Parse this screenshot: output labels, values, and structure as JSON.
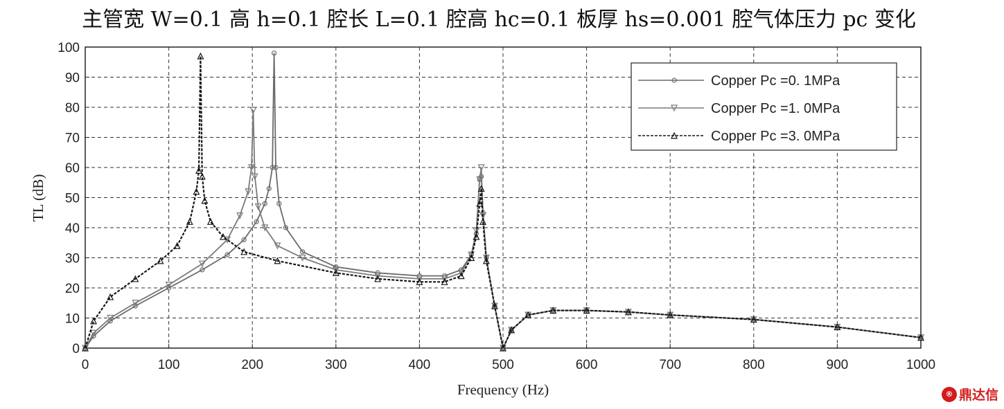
{
  "chart_data": {
    "type": "line",
    "title": "主管宽 W=0.1 高 h=0.1 腔长 L=0.1 腔高 hc=0.1 板厚 hs=0.001 腔气体压力 pc 变化",
    "xlabel": "Frequency (Hz)",
    "ylabel": "TL (dB)",
    "xlim": [
      0,
      1000
    ],
    "ylim": [
      0,
      100
    ],
    "xticks": [
      0,
      100,
      200,
      300,
      400,
      500,
      600,
      700,
      800,
      900,
      1000
    ],
    "yticks": [
      0,
      10,
      20,
      30,
      40,
      50,
      60,
      70,
      80,
      90,
      100
    ],
    "grid": true,
    "legend_position": "top-right",
    "series": [
      {
        "name": "Copper Pc =0. 1MPa",
        "color": "#6a6a6a",
        "line_style": "solid",
        "marker": "circle",
        "x": [
          0,
          10,
          30,
          60,
          100,
          140,
          170,
          190,
          205,
          215,
          220,
          224,
          226,
          228,
          232,
          240,
          260,
          300,
          350,
          400,
          430,
          450,
          462,
          468,
          472,
          474,
          476,
          480,
          490,
          500,
          510,
          530,
          560,
          600,
          650,
          700,
          800,
          900,
          1000
        ],
        "y": [
          0,
          4,
          9,
          14,
          20,
          26,
          31,
          36,
          42,
          48,
          53,
          60,
          98,
          60,
          48,
          40,
          32,
          27,
          25,
          24,
          24,
          26,
          31,
          38,
          56,
          57,
          45,
          30,
          14,
          0,
          6,
          11,
          12.5,
          12.5,
          12,
          11,
          9.5,
          7,
          3.5
        ]
      },
      {
        "name": "Copper Pc =1. 0MPa",
        "color": "#7a7a7a",
        "line_style": "solid",
        "marker": "triangle-down",
        "x": [
          0,
          10,
          30,
          60,
          100,
          140,
          170,
          185,
          195,
          199,
          201,
          203,
          207,
          215,
          230,
          260,
          300,
          350,
          400,
          430,
          450,
          462,
          468,
          472,
          474,
          476,
          480,
          490,
          500,
          510,
          530,
          560,
          600,
          650,
          700,
          800,
          900,
          1000
        ],
        "y": [
          0,
          5,
          10,
          15,
          21,
          28,
          36,
          44,
          52,
          60,
          79,
          57,
          47,
          40,
          34,
          30,
          26,
          24,
          23,
          23,
          25,
          31,
          39,
          56,
          60,
          44,
          30,
          14,
          0,
          6,
          11,
          12.5,
          12.5,
          12,
          11,
          9.5,
          7,
          3.5
        ]
      },
      {
        "name": "Copper Pc =3. 0MPa",
        "color": "#151515",
        "line_style": "dashed",
        "marker": "triangle-up",
        "x": [
          0,
          10,
          30,
          60,
          90,
          110,
          125,
          133,
          136,
          138,
          140,
          143,
          150,
          165,
          190,
          230,
          300,
          350,
          400,
          430,
          450,
          462,
          468,
          472,
          474,
          476,
          480,
          490,
          500,
          510,
          530,
          560,
          600,
          650,
          700,
          800,
          900,
          1000
        ],
        "y": [
          0,
          9,
          17,
          23,
          29,
          34,
          42,
          52,
          59,
          97,
          57,
          49,
          42,
          37,
          32,
          29,
          25,
          23,
          22,
          22,
          24,
          30,
          37,
          48,
          53,
          42,
          29,
          14,
          0,
          6,
          11,
          12.5,
          12.5,
          12,
          11,
          9.5,
          7,
          3.5
        ]
      }
    ]
  },
  "watermark": {
    "text": "鼎达信",
    "mark": "®"
  }
}
